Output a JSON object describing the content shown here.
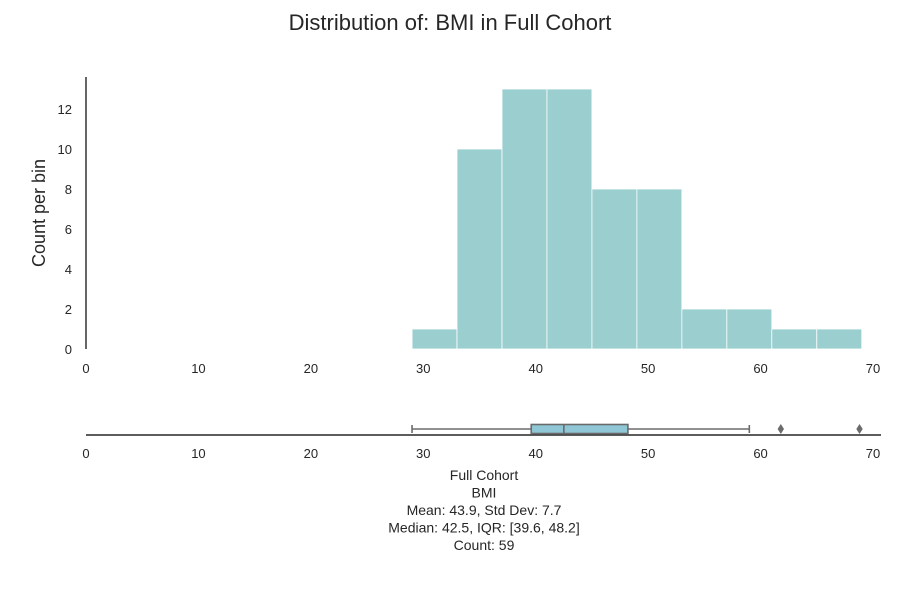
{
  "chart_data": {
    "type": "bar",
    "title": "Distribution of: BMI in Full Cohort",
    "ylabel": "Count per bin",
    "xlim": [
      0,
      70
    ],
    "ylim": [
      0,
      13.6
    ],
    "x_ticks": [
      "0",
      "10",
      "20",
      "30",
      "40",
      "50",
      "60",
      "70"
    ],
    "y_ticks": [
      "0",
      "2",
      "4",
      "6",
      "8",
      "10",
      "12"
    ],
    "bin_edges": [
      29.0,
      33.0,
      37.0,
      41.0,
      45.0,
      49.0,
      53.0,
      57.0,
      61.0,
      65.0,
      69.0
    ],
    "counts": [
      1,
      10,
      13,
      13,
      8,
      8,
      2,
      2,
      1,
      1
    ],
    "boxplot": {
      "whisker_low": 29.0,
      "q1": 39.6,
      "median": 42.5,
      "q3": 48.2,
      "whisker_high": 59.0,
      "outliers": [
        61.8,
        68.8
      ]
    },
    "summary_lines": [
      "Full Cohort",
      "BMI",
      "Mean: 43.9, Std Dev: 7.7",
      "Median: 42.5, IQR: [39.6, 48.2]",
      "Count: 59"
    ],
    "colors": {
      "bars": "#9bcecf",
      "box": "#8fc7d6",
      "axis": "#262626",
      "whisker": "#6b6b6b"
    }
  }
}
